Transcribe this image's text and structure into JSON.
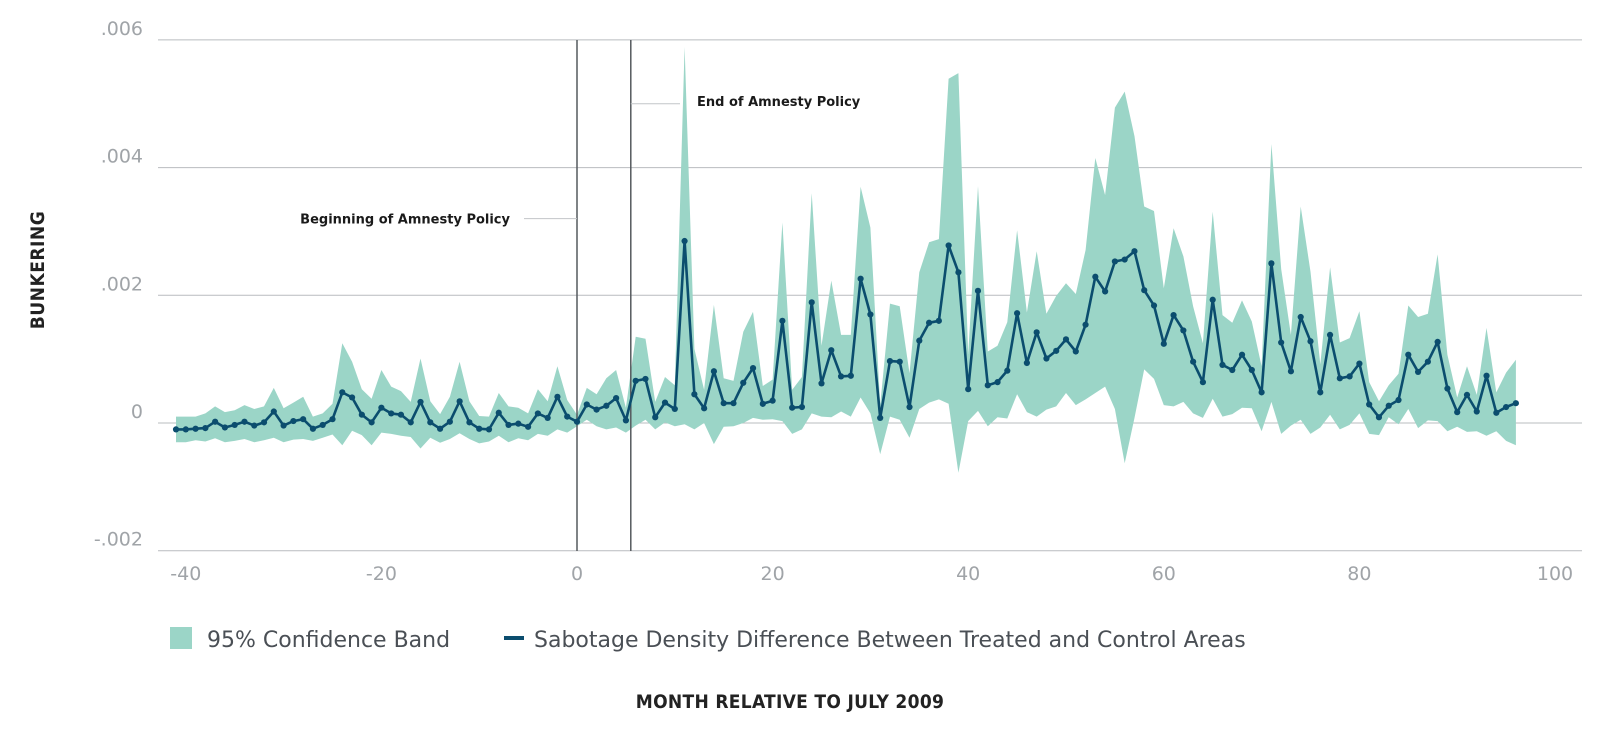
{
  "chart_data": {
    "type": "line",
    "xlabel": "MONTH RELATIVE TO JULY 2009",
    "ylabel": "BUNKERING",
    "xlim": [
      -42,
      102
    ],
    "ylim": [
      -0.002,
      0.006
    ],
    "xticks": [
      -40,
      -20,
      0,
      20,
      40,
      60,
      80,
      100
    ],
    "xtick_labels": [
      "-40",
      "-20",
      "0",
      "20",
      "40",
      "60",
      "80",
      "100"
    ],
    "yticks": [
      -0.002,
      0,
      0.002,
      0.004,
      0.006
    ],
    "ytick_labels": [
      "-.002",
      "0",
      ".002",
      ".004",
      ".006"
    ],
    "grid": "horizontal",
    "legend_position": "bottom",
    "legend": {
      "band_label": "95% Confidence Band",
      "line_label": "Sabotage Density Difference Between Treated and Control Areas"
    },
    "annotations": [
      {
        "label": "Beginning of Amnesty Policy",
        "x": 0,
        "y": 0.0032
      },
      {
        "label": "End of Amnesty Policy",
        "x": 5.5,
        "y": 0.005
      }
    ],
    "series": [
      {
        "name": "Sabotage Density Difference Between Treated and Control Areas",
        "color": "#0b4d6e",
        "band_color": "#9bd5c7",
        "x": [
          -41,
          -40,
          -39,
          -38,
          -37,
          -36,
          -35,
          -34,
          -33,
          -32,
          -31,
          -30,
          -29,
          -28,
          -27,
          -26,
          -25,
          -24,
          -23,
          -22,
          -21,
          -20,
          -19,
          -18,
          -17,
          -16,
          -15,
          -14,
          -13,
          -12,
          -11,
          -10,
          -9,
          -8,
          -7,
          -6,
          -5,
          -4,
          -3,
          -2,
          -1,
          0,
          1,
          2,
          3,
          4,
          5,
          6,
          7,
          8,
          9,
          10,
          11,
          12,
          13,
          14,
          15,
          16,
          17,
          18,
          19,
          20,
          21,
          22,
          23,
          24,
          25,
          26,
          27,
          28,
          29,
          30,
          31,
          32,
          33,
          34,
          35,
          36,
          37,
          38,
          39,
          40,
          41,
          42,
          43,
          44,
          45,
          46,
          47,
          48,
          49,
          50,
          51,
          52,
          53,
          54,
          55,
          56,
          57,
          58,
          59,
          60,
          61,
          62,
          63,
          64,
          65,
          66,
          67,
          68,
          69,
          70,
          71,
          72,
          73,
          74,
          75,
          76,
          77,
          78,
          79,
          80,
          81,
          82,
          83,
          84,
          85,
          86,
          87,
          88,
          89,
          90,
          91,
          92,
          93,
          94,
          95,
          96
        ],
        "y": [
          -0.0001,
          -0.0001,
          -9e-05,
          -8e-05,
          2e-05,
          -7e-05,
          -3e-05,
          2e-05,
          -4e-05,
          1e-05,
          0.00018,
          -4e-05,
          3e-05,
          6e-05,
          -9e-05,
          -3e-05,
          6e-05,
          0.00048,
          0.0004,
          0.00013,
          1e-05,
          0.00024,
          0.00015,
          0.00013,
          1e-05,
          0.00033,
          1e-05,
          -9e-05,
          2e-05,
          0.00034,
          1e-05,
          -9e-05,
          -0.0001,
          0.00016,
          -3e-05,
          -1e-05,
          -6e-05,
          0.00015,
          8e-05,
          0.00041,
          0.0001,
          2e-05,
          0.00029,
          0.00021,
          0.00027,
          0.00039,
          4e-05,
          0.00066,
          0.00069,
          9e-05,
          0.00032,
          0.00022,
          0.00285,
          0.00045,
          0.00023,
          0.00081,
          0.00031,
          0.00031,
          0.00063,
          0.00086,
          0.0003,
          0.00035,
          0.0016,
          0.00024,
          0.00025,
          0.00189,
          0.00062,
          0.00114,
          0.00073,
          0.00074,
          0.00226,
          0.0017,
          8e-05,
          0.00097,
          0.00096,
          0.00025,
          0.00129,
          0.00157,
          0.0016,
          0.00278,
          0.00236,
          0.00053,
          0.00207,
          0.00059,
          0.00064,
          0.00082,
          0.00172,
          0.00094,
          0.00142,
          0.00101,
          0.00113,
          0.00131,
          0.00112,
          0.00154,
          0.00229,
          0.00206,
          0.00253,
          0.00256,
          0.00269,
          0.00208,
          0.00184,
          0.00124,
          0.00169,
          0.00145,
          0.00096,
          0.00064,
          0.00193,
          0.00091,
          0.00083,
          0.00107,
          0.00083,
          0.00048,
          0.0025,
          0.00126,
          0.00081,
          0.00166,
          0.00128,
          0.00048,
          0.00138,
          0.0007,
          0.00073,
          0.00093,
          0.00029,
          9e-05,
          0.00027,
          0.00036,
          0.00107,
          0.0008,
          0.00096,
          0.00127,
          0.00054,
          0.00017,
          0.00044,
          0.00018,
          0.00074,
          0.00016,
          0.00025,
          0.00031
        ],
        "lower": [
          -0.0003,
          -0.0003,
          -0.00027,
          -0.00029,
          -0.00024,
          -0.0003,
          -0.00028,
          -0.00025,
          -0.0003,
          -0.00027,
          -0.00023,
          -0.0003,
          -0.00026,
          -0.00025,
          -0.00028,
          -0.00023,
          -0.00018,
          -0.00035,
          -0.00012,
          -0.00019,
          -0.00035,
          -0.00015,
          -0.00017,
          -0.0002,
          -0.00022,
          -0.0004,
          -0.00023,
          -0.00031,
          -0.00025,
          -0.00016,
          -0.00025,
          -0.00032,
          -0.00029,
          -0.0002,
          -0.0003,
          -0.00024,
          -0.00027,
          -0.00017,
          -0.0002,
          -0.0001,
          -0.00015,
          -5e-05,
          5e-05,
          -5e-05,
          -0.0001,
          -7e-05,
          -0.00015,
          -4e-05,
          5e-05,
          -0.0001,
          1e-05,
          -5e-05,
          -2e-05,
          -0.0001,
          0.0,
          -0.00033,
          -6e-05,
          -5e-05,
          0.0,
          8e-05,
          5e-05,
          6e-05,
          3e-05,
          -0.00017,
          -0.0001,
          0.00015,
          0.0001,
          9e-05,
          0.00018,
          0.0001,
          0.0004,
          0.00015,
          -0.00049,
          0.0001,
          5e-05,
          -0.00023,
          0.00022,
          0.00032,
          0.00037,
          0.0003,
          -0.00078,
          3e-05,
          0.00019,
          -5e-05,
          9e-05,
          7e-05,
          0.00045,
          0.00017,
          0.0001,
          0.00021,
          0.00026,
          0.00047,
          0.00028,
          0.00037,
          0.00047,
          0.00057,
          0.00022,
          -0.00063,
          8e-05,
          0.00084,
          0.00069,
          0.00028,
          0.00026,
          0.00033,
          0.00015,
          8e-05,
          0.00038,
          0.0001,
          0.00014,
          0.00024,
          0.00023,
          -0.00013,
          0.00033,
          -0.00017,
          -4e-05,
          5e-05,
          -0.00017,
          -7e-05,
          0.00013,
          -0.0001,
          -3e-05,
          0.00015,
          -0.00017,
          -0.00019,
          9e-05,
          -2e-05,
          0.00022,
          -8e-05,
          4e-05,
          3e-05,
          -0.00013,
          -6e-05,
          -0.00014,
          -0.00013,
          -0.0002,
          -0.00013,
          -0.00028,
          -0.00035
        ],
        "upper": [
          0.0001,
          0.0001,
          0.0001,
          0.00015,
          0.00026,
          0.00017,
          0.0002,
          0.00028,
          0.00022,
          0.00026,
          0.00055,
          0.00023,
          0.00032,
          0.00041,
          0.0001,
          0.00015,
          0.0003,
          0.00125,
          0.00096,
          0.00053,
          0.00038,
          0.00083,
          0.00057,
          0.0005,
          0.00033,
          0.00101,
          0.00034,
          0.00014,
          0.00041,
          0.00096,
          0.00034,
          0.00011,
          0.0001,
          0.00047,
          0.00026,
          0.00024,
          0.00015,
          0.00053,
          0.00034,
          0.00089,
          0.00036,
          0.00013,
          0.00055,
          0.00045,
          0.0007,
          0.00083,
          0.00024,
          0.00135,
          0.00132,
          0.00033,
          0.00072,
          0.00059,
          0.00589,
          0.00116,
          0.00052,
          0.00185,
          0.0007,
          0.00066,
          0.00143,
          0.00174,
          0.00058,
          0.00068,
          0.00314,
          0.00052,
          0.00072,
          0.0036,
          0.00121,
          0.00223,
          0.00138,
          0.00138,
          0.0037,
          0.00306,
          0.00028,
          0.00187,
          0.00183,
          0.00078,
          0.00236,
          0.00283,
          0.00288,
          0.00539,
          0.00548,
          0.00108,
          0.00371,
          0.00112,
          0.00121,
          0.00158,
          0.00302,
          0.00173,
          0.00269,
          0.00171,
          0.00199,
          0.00219,
          0.00202,
          0.00271,
          0.00415,
          0.00357,
          0.00494,
          0.00519,
          0.00449,
          0.00339,
          0.00332,
          0.00211,
          0.00305,
          0.00261,
          0.00183,
          0.00125,
          0.00331,
          0.00169,
          0.00157,
          0.00192,
          0.00159,
          0.00089,
          0.00437,
          0.00241,
          0.00138,
          0.00339,
          0.00237,
          0.00092,
          0.00244,
          0.00126,
          0.00133,
          0.00175,
          0.00064,
          0.00034,
          0.00059,
          0.00077,
          0.00184,
          0.00166,
          0.00171,
          0.00264,
          0.00107,
          0.0004,
          0.00089,
          0.00044,
          0.00149,
          0.00048,
          0.00079,
          0.00099
        ]
      }
    ]
  }
}
